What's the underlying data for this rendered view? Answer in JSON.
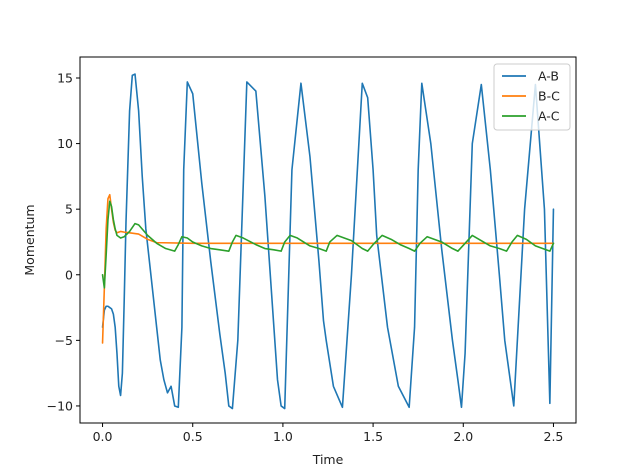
{
  "chart_data": {
    "type": "line",
    "xlabel": "Time",
    "ylabel": "Momentum",
    "xlim": [
      -0.125,
      2.625
    ],
    "ylim": [
      -11.3,
      16.6
    ],
    "xticks": [
      0.0,
      0.5,
      1.0,
      1.5,
      2.0,
      2.5
    ],
    "xtick_labels": [
      "0.0",
      "0.5",
      "1.0",
      "1.5",
      "2.0",
      "2.5"
    ],
    "yticks": [
      -10,
      -5,
      0,
      5,
      10,
      15
    ],
    "ytick_labels": [
      "−10",
      "−5",
      "0",
      "5",
      "10",
      "15"
    ],
    "grid": false,
    "legend": "top-right",
    "series": [
      {
        "name": "A-B",
        "color": "#1f77b4",
        "x": [
          0.0,
          0.01,
          0.02,
          0.03,
          0.04,
          0.05,
          0.06,
          0.07,
          0.08,
          0.09,
          0.1,
          0.11,
          0.12,
          0.13,
          0.15,
          0.165,
          0.18,
          0.2,
          0.22,
          0.24,
          0.26,
          0.28,
          0.3,
          0.32,
          0.34,
          0.36,
          0.38,
          0.4,
          0.42,
          0.44,
          0.45,
          0.47,
          0.5,
          0.55,
          0.6,
          0.65,
          0.68,
          0.7,
          0.72,
          0.75,
          0.8,
          0.85,
          0.9,
          0.95,
          0.97,
          0.99,
          1.01,
          1.05,
          1.1,
          1.15,
          1.2,
          1.225,
          1.24,
          1.28,
          1.33,
          1.38,
          1.44,
          1.47,
          1.5,
          1.52,
          1.58,
          1.64,
          1.7,
          1.73,
          1.75,
          1.77,
          1.82,
          1.88,
          1.94,
          1.97,
          1.99,
          2.01,
          2.05,
          2.1,
          2.15,
          2.2,
          2.23,
          2.26,
          2.28,
          2.34,
          2.4,
          2.45,
          2.48,
          2.5
        ],
        "y": [
          -4.0,
          -2.7,
          -2.4,
          -2.4,
          -2.5,
          -2.6,
          -3.0,
          -4.0,
          -6.0,
          -8.5,
          -9.2,
          -7.5,
          -2.0,
          4.0,
          12.5,
          15.2,
          15.3,
          12.5,
          7.5,
          3.5,
          1.0,
          -1.5,
          -4.0,
          -6.5,
          -8.0,
          -9.0,
          -8.5,
          -10.0,
          -10.1,
          -4.0,
          8.0,
          14.7,
          13.8,
          7.0,
          1.0,
          -4.5,
          -7.5,
          -10.0,
          -10.2,
          -5.0,
          14.7,
          14.0,
          6.0,
          -4.0,
          -8.0,
          -10.0,
          -10.2,
          8.0,
          14.6,
          9.0,
          1.0,
          -3.5,
          -5.0,
          -8.5,
          -10.1,
          0.0,
          14.6,
          13.5,
          8.0,
          3.0,
          -4.0,
          -8.5,
          -10.1,
          -4.0,
          8.0,
          14.6,
          10.0,
          2.0,
          -5.0,
          -8.0,
          -10.1,
          -6.0,
          10.0,
          14.5,
          8.0,
          0.0,
          -5.0,
          -8.0,
          -10.0,
          5.0,
          14.5,
          5.0,
          -9.8,
          5.0
        ]
      },
      {
        "name": "B-C",
        "color": "#ff7f0e",
        "x": [
          0.0,
          0.01,
          0.02,
          0.03,
          0.04,
          0.05,
          0.06,
          0.07,
          0.08,
          0.1,
          0.12,
          0.15,
          0.2,
          0.25,
          0.3,
          0.5,
          1.0,
          1.5,
          2.0,
          2.5
        ],
        "y": [
          -5.2,
          -1.0,
          3.5,
          5.8,
          6.1,
          5.0,
          4.0,
          3.4,
          3.2,
          3.3,
          3.25,
          3.2,
          3.1,
          2.7,
          2.45,
          2.4,
          2.4,
          2.4,
          2.4,
          2.4
        ]
      },
      {
        "name": "A-C",
        "color": "#2ca02c",
        "x": [
          0.0,
          0.01,
          0.02,
          0.03,
          0.04,
          0.05,
          0.06,
          0.07,
          0.08,
          0.1,
          0.12,
          0.15,
          0.18,
          0.2,
          0.25,
          0.3,
          0.35,
          0.4,
          0.42,
          0.44,
          0.47,
          0.5,
          0.55,
          0.6,
          0.65,
          0.7,
          0.72,
          0.74,
          0.78,
          0.85,
          0.9,
          0.95,
          0.99,
          1.01,
          1.04,
          1.08,
          1.15,
          1.2,
          1.24,
          1.26,
          1.3,
          1.38,
          1.44,
          1.47,
          1.5,
          1.55,
          1.6,
          1.65,
          1.7,
          1.73,
          1.76,
          1.8,
          1.88,
          1.94,
          1.97,
          2.01,
          2.05,
          2.1,
          2.15,
          2.2,
          2.24,
          2.27,
          2.3,
          2.35,
          2.4,
          2.44,
          2.48,
          2.5
        ],
        "y": [
          0.0,
          -1.0,
          1.5,
          4.2,
          5.6,
          5.2,
          4.2,
          3.5,
          3.0,
          2.8,
          2.9,
          3.3,
          3.9,
          3.8,
          3.0,
          2.4,
          2.0,
          1.8,
          2.3,
          2.9,
          2.8,
          2.5,
          2.2,
          2.0,
          1.9,
          1.8,
          2.5,
          3.0,
          2.8,
          2.3,
          2.0,
          1.9,
          1.8,
          2.5,
          3.0,
          2.8,
          2.2,
          2.0,
          1.8,
          2.5,
          3.0,
          2.6,
          2.0,
          1.8,
          2.3,
          3.0,
          2.7,
          2.3,
          2.0,
          1.8,
          2.4,
          2.9,
          2.5,
          2.0,
          1.8,
          2.4,
          3.0,
          2.6,
          2.2,
          2.0,
          1.8,
          2.5,
          3.0,
          2.7,
          2.2,
          2.0,
          1.8,
          2.4
        ]
      }
    ]
  }
}
